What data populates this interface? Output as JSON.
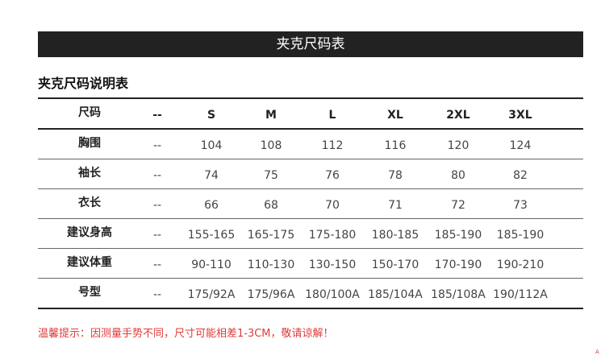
{
  "banner": "夹克尺码表",
  "heading": "夹克尺码说明表",
  "table": {
    "header": [
      "尺码",
      "--",
      "S",
      "M",
      "L",
      "XL",
      "2XL",
      "3XL"
    ],
    "rows": [
      [
        "胸围",
        "--",
        "104",
        "108",
        "112",
        "116",
        "120",
        "124"
      ],
      [
        "袖长",
        "--",
        "74",
        "75",
        "76",
        "78",
        "80",
        "82"
      ],
      [
        "衣长",
        "--",
        "66",
        "68",
        "70",
        "71",
        "72",
        "73"
      ],
      [
        "建议身高",
        "--",
        "155-165",
        "165-175",
        "175-180",
        "180-185",
        "185-190",
        "185-190"
      ],
      [
        "建议体重",
        "--",
        "90-110",
        "110-130",
        "130-150",
        "150-170",
        "170-190",
        "190-210"
      ],
      [
        "号型",
        "--",
        "175/92A",
        "175/96A",
        "180/100A",
        "185/104A",
        "185/108A",
        "190/112A"
      ]
    ]
  },
  "note": "温馨提示：因测量手势不同，尺寸可能相差1-3CM，敬请谅解！",
  "corner_mark": "A",
  "colors": {
    "banner": "#222222",
    "note": "#e03a3a"
  }
}
